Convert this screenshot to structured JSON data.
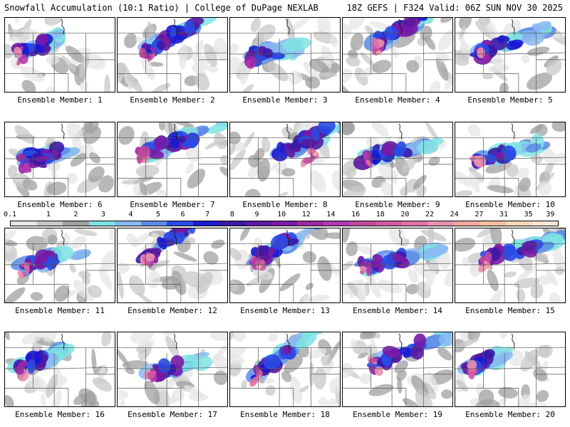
{
  "header": {
    "title": "Snowfall Accumulation (10:1 Ratio) | College of DuPage NEXLAB",
    "run_info": "18Z GEFS | F324 Valid: 06Z SUN NOV 30 2025"
  },
  "members": [
    {
      "label": "Ensemble Member: 1"
    },
    {
      "label": "Ensemble Member: 2"
    },
    {
      "label": "Ensemble Member: 3"
    },
    {
      "label": "Ensemble Member: 4"
    },
    {
      "label": "Ensemble Member: 5"
    },
    {
      "label": "Ensemble Member: 6"
    },
    {
      "label": "Ensemble Member: 7"
    },
    {
      "label": "Ensemble Member: 8"
    },
    {
      "label": "Ensemble Member: 9"
    },
    {
      "label": "Ensemble Member: 10"
    },
    {
      "label": "Ensemble Member: 11"
    },
    {
      "label": "Ensemble Member: 12"
    },
    {
      "label": "Ensemble Member: 13"
    },
    {
      "label": "Ensemble Member: 14"
    },
    {
      "label": "Ensemble Member: 15"
    },
    {
      "label": "Ensemble Member: 16"
    },
    {
      "label": "Ensemble Member: 17"
    },
    {
      "label": "Ensemble Member: 18"
    },
    {
      "label": "Ensemble Member: 19"
    },
    {
      "label": "Ensemble Member: 20"
    }
  ],
  "color_scale": {
    "ticks": [
      "0.1",
      "1",
      "2",
      "3",
      "4",
      "5",
      "6",
      "7",
      "8",
      "9",
      "10",
      "12",
      "14",
      "16",
      "18",
      "20",
      "22",
      "24",
      "27",
      "31",
      "35",
      "39"
    ],
    "colors": [
      "#e6e6e6",
      "#c8c8c8",
      "#a0a0a0",
      "#7fe3e3",
      "#8ab8f0",
      "#5a8ae6",
      "#2a4ae6",
      "#1a1ad0",
      "#3a1aa6",
      "#5a1aa0",
      "#7a1aa6",
      "#9a2aa6",
      "#b03ab0",
      "#c04aa0",
      "#d05aa0",
      "#e070a6",
      "#e890b0",
      "#f0a8a0",
      "#f4c0a0",
      "#f8d6b8",
      "#fbe6d6"
    ]
  }
}
